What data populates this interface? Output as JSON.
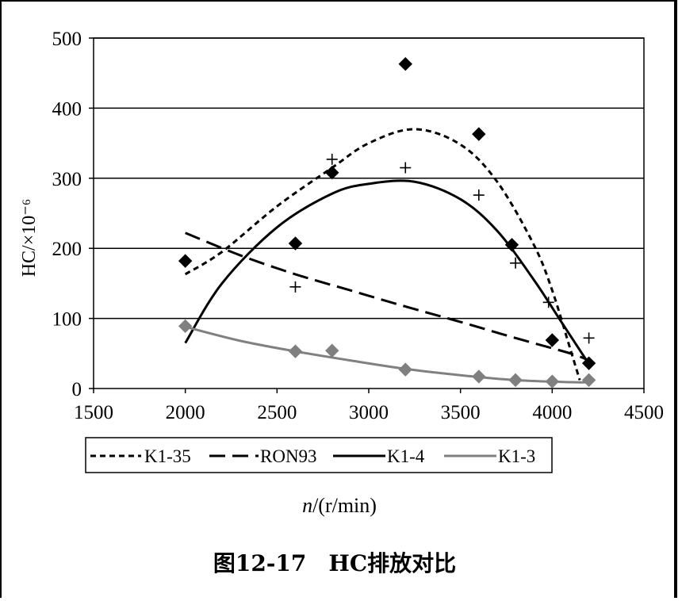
{
  "chart_data": {
    "type": "scatter",
    "title": "",
    "caption": "图12-17　HC排放对比",
    "xlabel": "n/(r/min)",
    "xlabel_italic_part": "n",
    "xlabel_rest": "/(r/min)",
    "ylabel": "HC/×10⁻⁶",
    "xlim": [
      1500,
      4500
    ],
    "ylim": [
      0,
      500
    ],
    "xticks": [
      1500,
      2000,
      2500,
      3000,
      3500,
      4000,
      4500
    ],
    "yticks": [
      0,
      100,
      200,
      300,
      400,
      500
    ],
    "grid": "horizontal",
    "legend_position": "bottom",
    "series": [
      {
        "name": "K1-35",
        "style": "dotted",
        "color": "#000000",
        "marker": "diamond",
        "points": [
          [
            2000,
            182
          ],
          [
            2600,
            207
          ],
          [
            2800,
            308
          ],
          [
            3200,
            463
          ],
          [
            3600,
            363
          ],
          [
            3780,
            205
          ],
          [
            4000,
            69
          ],
          [
            4200,
            36
          ]
        ],
        "trend": [
          [
            2000,
            163
          ],
          [
            2200,
            195
          ],
          [
            2500,
            260
          ],
          [
            2800,
            315
          ],
          [
            3000,
            350
          ],
          [
            3250,
            370
          ],
          [
            3500,
            348
          ],
          [
            3700,
            295
          ],
          [
            3900,
            205
          ],
          [
            4000,
            140
          ],
          [
            4100,
            55
          ],
          [
            4150,
            12
          ]
        ]
      },
      {
        "name": "RON93",
        "style": "dashed",
        "color": "#000000",
        "marker": "plus",
        "points": [
          [
            2800,
            327
          ],
          [
            2600,
            145
          ],
          [
            3200,
            315
          ],
          [
            3600,
            276
          ],
          [
            3800,
            179
          ],
          [
            3980,
            123
          ],
          [
            4200,
            72
          ]
        ],
        "trend": [
          [
            2000,
            222
          ],
          [
            2300,
            190
          ],
          [
            2600,
            163
          ],
          [
            2900,
            140
          ],
          [
            3200,
            117
          ],
          [
            3500,
            95
          ],
          [
            3800,
            72
          ],
          [
            4100,
            50
          ],
          [
            4200,
            40
          ]
        ]
      },
      {
        "name": "K1-4",
        "style": "solid",
        "color": "#000000",
        "marker": "none",
        "points": [],
        "trend": [
          [
            2000,
            65
          ],
          [
            2200,
            150
          ],
          [
            2500,
            230
          ],
          [
            2800,
            278
          ],
          [
            3000,
            292
          ],
          [
            3250,
            295
          ],
          [
            3500,
            270
          ],
          [
            3700,
            225
          ],
          [
            3900,
            155
          ],
          [
            4050,
            95
          ],
          [
            4200,
            35
          ]
        ]
      },
      {
        "name": "K1-3",
        "style": "solid",
        "color": "#808080",
        "marker": "diamond",
        "points": [
          [
            2000,
            89
          ],
          [
            2600,
            53
          ],
          [
            2800,
            54
          ],
          [
            3200,
            27
          ],
          [
            3600,
            17
          ],
          [
            3800,
            12
          ],
          [
            4000,
            10
          ],
          [
            4200,
            12
          ]
        ],
        "trend": [
          [
            2000,
            88
          ],
          [
            2300,
            68
          ],
          [
            2600,
            53
          ],
          [
            2900,
            40
          ],
          [
            3200,
            28
          ],
          [
            3500,
            19
          ],
          [
            3800,
            12
          ],
          [
            4100,
            9
          ],
          [
            4200,
            9
          ]
        ]
      }
    ]
  }
}
